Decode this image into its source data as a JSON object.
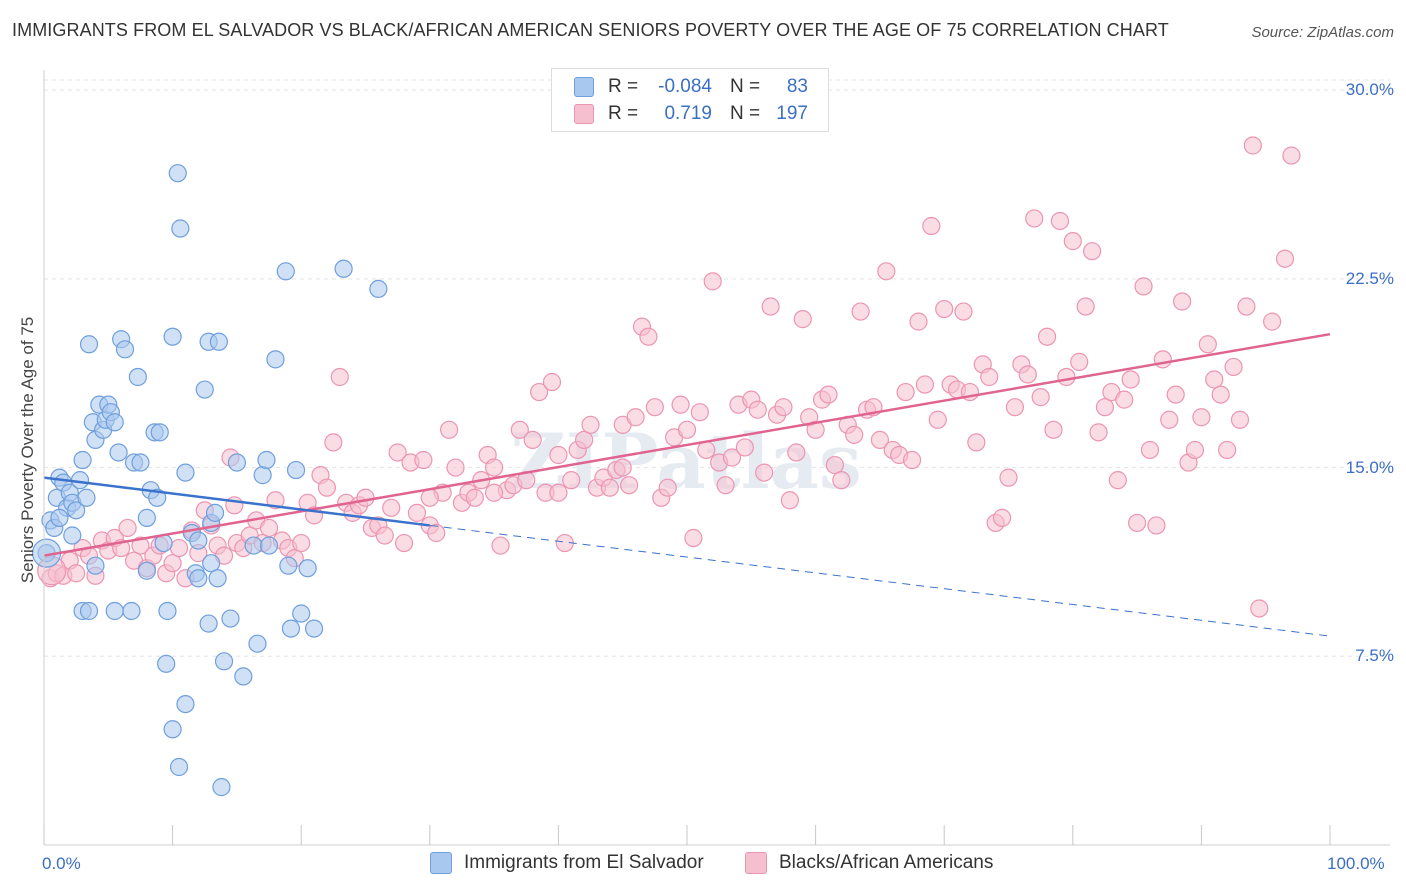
{
  "header": {
    "title": "IMMIGRANTS FROM EL SALVADOR VS BLACK/AFRICAN AMERICAN SENIORS POVERTY OVER THE AGE OF 75 CORRELATION CHART",
    "source": "Source: ZipAtlas.com"
  },
  "legend": {
    "blue": {
      "r_label": "R =",
      "r_value": "-0.084",
      "n_label": "N =",
      "n_value": "83"
    },
    "pink": {
      "r_label": "R =",
      "r_value": "0.719",
      "n_label": "N =",
      "n_value": "197"
    }
  },
  "bottom_legend": {
    "blue": "Immigrants from El Salvador",
    "pink": "Blacks/African Americans"
  },
  "colors": {
    "blue_fill": "#a9c8ef",
    "blue_stroke": "#6f9fdc",
    "blue_line": "#3a72cc",
    "pink_fill": "#f6bfd0",
    "pink_stroke": "#ec95b2",
    "pink_line": "#e0648f",
    "grid": "#e4e4e4",
    "axis_text": "#3b6fc4"
  },
  "watermark": "ZIPatlas",
  "chart_data": {
    "type": "scatter",
    "title": "IMMIGRANTS FROM EL SALVADOR VS BLACK/AFRICAN AMERICAN SENIORS POVERTY OVER THE AGE OF 75 CORRELATION CHART",
    "xlabel": "",
    "ylabel": "Seniors Poverty Over the Age of 75",
    "xlim": [
      0,
      100
    ],
    "ylim": [
      0,
      30.8
    ],
    "x_tick_labels": [
      "0.0%",
      "100.0%"
    ],
    "y_ticks": [
      7.5,
      15.0,
      22.5,
      30.0
    ],
    "y_tick_labels": [
      "7.5%",
      "15.0%",
      "22.5%",
      "30.0%"
    ],
    "grid": true,
    "legend_position": "top-center",
    "series": [
      {
        "name": "Immigrants from El Salvador",
        "color": "blue",
        "trend": {
          "x": [
            0,
            30,
            100
          ],
          "y": [
            14.6,
            12.7,
            8.3
          ],
          "solid_until": 30
        },
        "points": [
          [
            0.2,
            11.6
          ],
          [
            0.5,
            12.9
          ],
          [
            0.8,
            12.6
          ],
          [
            1.0,
            13.8
          ],
          [
            1.2,
            14.6
          ],
          [
            1.5,
            14.4
          ],
          [
            1.8,
            13.4
          ],
          [
            2.0,
            14.0
          ],
          [
            2.2,
            13.6
          ],
          [
            2.5,
            13.3
          ],
          [
            2.8,
            14.5
          ],
          [
            3.0,
            15.3
          ],
          [
            3.3,
            13.8
          ],
          [
            3.5,
            19.9
          ],
          [
            3.8,
            16.8
          ],
          [
            4.0,
            16.1
          ],
          [
            4.3,
            17.5
          ],
          [
            4.6,
            16.5
          ],
          [
            4.8,
            16.9
          ],
          [
            5.0,
            17.5
          ],
          [
            5.2,
            17.2
          ],
          [
            5.5,
            16.8
          ],
          [
            5.8,
            15.6
          ],
          [
            6.0,
            20.1
          ],
          [
            6.3,
            19.7
          ],
          [
            7.0,
            15.2
          ],
          [
            7.3,
            18.6
          ],
          [
            7.5,
            15.2
          ],
          [
            8.0,
            13.0
          ],
          [
            8.3,
            14.1
          ],
          [
            8.6,
            16.4
          ],
          [
            8.8,
            13.8
          ],
          [
            9.0,
            16.4
          ],
          [
            9.3,
            12.0
          ],
          [
            9.6,
            9.3
          ],
          [
            10.0,
            20.2
          ],
          [
            10.4,
            26.7
          ],
          [
            10.6,
            24.5
          ],
          [
            11.0,
            14.8
          ],
          [
            11.5,
            12.4
          ],
          [
            11.8,
            10.8
          ],
          [
            12.0,
            12.1
          ],
          [
            12.5,
            18.1
          ],
          [
            12.8,
            20.0
          ],
          [
            13.0,
            12.8
          ],
          [
            13.3,
            13.2
          ],
          [
            13.6,
            20.0
          ],
          [
            14.0,
            7.3
          ],
          [
            14.5,
            9.0
          ],
          [
            15.0,
            15.2
          ],
          [
            15.5,
            6.7
          ],
          [
            16.3,
            11.9
          ],
          [
            16.6,
            8.0
          ],
          [
            17.0,
            14.7
          ],
          [
            17.3,
            15.3
          ],
          [
            17.5,
            11.9
          ],
          [
            18.0,
            19.3
          ],
          [
            18.8,
            22.8
          ],
          [
            19.0,
            11.1
          ],
          [
            19.2,
            8.6
          ],
          [
            19.6,
            14.9
          ],
          [
            20.0,
            9.2
          ],
          [
            20.5,
            11.0
          ],
          [
            21.0,
            8.6
          ],
          [
            23.3,
            22.9
          ],
          [
            26.0,
            22.1
          ],
          [
            1.2,
            13.0
          ],
          [
            2.2,
            12.3
          ],
          [
            3.0,
            9.3
          ],
          [
            3.5,
            9.3
          ],
          [
            4.0,
            11.1
          ],
          [
            8.0,
            10.9
          ],
          [
            12.0,
            10.6
          ],
          [
            13.0,
            11.2
          ],
          [
            5.5,
            9.3
          ],
          [
            6.8,
            9.3
          ],
          [
            9.5,
            7.2
          ],
          [
            10.0,
            4.6
          ],
          [
            10.5,
            3.1
          ],
          [
            11.0,
            5.6
          ],
          [
            12.8,
            8.8
          ],
          [
            13.5,
            10.6
          ],
          [
            13.8,
            2.3
          ]
        ]
      },
      {
        "name": "Blacks/African Americans",
        "color": "pink",
        "trend": {
          "x": [
            0,
            100
          ],
          "y": [
            11.5,
            20.3
          ]
        },
        "points": [
          [
            0.5,
            10.6
          ],
          [
            1.0,
            10.8
          ],
          [
            1.5,
            10.7
          ],
          [
            2.0,
            11.3
          ],
          [
            2.5,
            10.8
          ],
          [
            3.0,
            11.8
          ],
          [
            3.5,
            11.5
          ],
          [
            4.0,
            10.7
          ],
          [
            4.5,
            12.1
          ],
          [
            5.0,
            11.7
          ],
          [
            5.5,
            12.2
          ],
          [
            6.0,
            11.8
          ],
          [
            6.5,
            12.6
          ],
          [
            7.0,
            11.3
          ],
          [
            7.5,
            11.9
          ],
          [
            8.0,
            11.0
          ],
          [
            8.5,
            11.5
          ],
          [
            9.0,
            11.9
          ],
          [
            9.5,
            10.8
          ],
          [
            10.0,
            11.2
          ],
          [
            10.5,
            11.8
          ],
          [
            11.0,
            10.6
          ],
          [
            11.5,
            12.5
          ],
          [
            12.0,
            11.6
          ],
          [
            12.5,
            13.3
          ],
          [
            13.0,
            12.7
          ],
          [
            13.5,
            11.9
          ],
          [
            14.0,
            11.5
          ],
          [
            14.5,
            15.4
          ],
          [
            15.0,
            12.0
          ],
          [
            15.5,
            11.8
          ],
          [
            16.0,
            12.3
          ],
          [
            16.5,
            12.9
          ],
          [
            17.0,
            12.0
          ],
          [
            17.5,
            12.6
          ],
          [
            18.0,
            13.7
          ],
          [
            18.5,
            12.1
          ],
          [
            19.0,
            11.8
          ],
          [
            19.5,
            11.4
          ],
          [
            20.0,
            12.0
          ],
          [
            20.5,
            13.6
          ],
          [
            21.0,
            13.1
          ],
          [
            21.5,
            14.7
          ],
          [
            22.0,
            14.2
          ],
          [
            22.5,
            16.0
          ],
          [
            23.0,
            18.6
          ],
          [
            23.5,
            13.6
          ],
          [
            24.0,
            13.2
          ],
          [
            24.5,
            13.5
          ],
          [
            25.0,
            13.8
          ],
          [
            25.5,
            12.6
          ],
          [
            26.0,
            12.7
          ],
          [
            26.5,
            12.3
          ],
          [
            27.0,
            13.4
          ],
          [
            27.5,
            15.6
          ],
          [
            28.0,
            12.0
          ],
          [
            28.5,
            15.2
          ],
          [
            29.0,
            13.2
          ],
          [
            29.5,
            15.3
          ],
          [
            30.0,
            12.7
          ],
          [
            30.5,
            12.4
          ],
          [
            31.0,
            14.0
          ],
          [
            31.5,
            16.5
          ],
          [
            32.0,
            15.0
          ],
          [
            32.5,
            13.6
          ],
          [
            33.0,
            14.0
          ],
          [
            33.5,
            13.8
          ],
          [
            34.0,
            14.5
          ],
          [
            34.5,
            15.5
          ],
          [
            35.0,
            15.0
          ],
          [
            35.5,
            11.9
          ],
          [
            36.0,
            14.1
          ],
          [
            36.5,
            14.3
          ],
          [
            37.0,
            16.5
          ],
          [
            37.5,
            14.5
          ],
          [
            38.0,
            16.1
          ],
          [
            38.5,
            18.0
          ],
          [
            39.0,
            14.0
          ],
          [
            39.5,
            18.4
          ],
          [
            40.0,
            14.0
          ],
          [
            40.5,
            12.0
          ],
          [
            41.0,
            14.5
          ],
          [
            41.5,
            15.7
          ],
          [
            42.0,
            16.1
          ],
          [
            42.5,
            16.7
          ],
          [
            43.0,
            14.2
          ],
          [
            43.5,
            14.6
          ],
          [
            44.0,
            14.2
          ],
          [
            44.5,
            14.9
          ],
          [
            45.0,
            16.7
          ],
          [
            45.5,
            14.3
          ],
          [
            46.0,
            17.0
          ],
          [
            46.5,
            20.6
          ],
          [
            47.0,
            20.2
          ],
          [
            47.5,
            17.4
          ],
          [
            48.0,
            13.8
          ],
          [
            48.5,
            14.2
          ],
          [
            49.0,
            16.2
          ],
          [
            49.5,
            17.5
          ],
          [
            50.0,
            16.5
          ],
          [
            50.5,
            12.2
          ],
          [
            51.0,
            17.2
          ],
          [
            51.5,
            15.7
          ],
          [
            52.0,
            22.4
          ],
          [
            52.5,
            15.2
          ],
          [
            53.0,
            14.3
          ],
          [
            53.5,
            15.4
          ],
          [
            54.0,
            17.5
          ],
          [
            54.5,
            15.8
          ],
          [
            55.0,
            17.7
          ],
          [
            55.5,
            17.3
          ],
          [
            56.0,
            14.8
          ],
          [
            56.5,
            21.4
          ],
          [
            57.0,
            17.1
          ],
          [
            57.5,
            17.4
          ],
          [
            58.0,
            13.7
          ],
          [
            58.5,
            15.6
          ],
          [
            59.0,
            20.9
          ],
          [
            59.5,
            17.0
          ],
          [
            60.0,
            16.5
          ],
          [
            60.5,
            17.7
          ],
          [
            61.0,
            17.9
          ],
          [
            61.5,
            15.1
          ],
          [
            62.0,
            14.5
          ],
          [
            62.5,
            16.7
          ],
          [
            63.0,
            16.3
          ],
          [
            63.5,
            21.2
          ],
          [
            64.0,
            17.3
          ],
          [
            64.5,
            17.4
          ],
          [
            65.0,
            16.1
          ],
          [
            65.5,
            22.8
          ],
          [
            66.0,
            15.7
          ],
          [
            66.5,
            15.5
          ],
          [
            67.0,
            18.0
          ],
          [
            67.5,
            15.3
          ],
          [
            68.0,
            20.8
          ],
          [
            68.5,
            18.3
          ],
          [
            69.0,
            24.6
          ],
          [
            69.5,
            16.9
          ],
          [
            70.0,
            21.3
          ],
          [
            70.5,
            18.3
          ],
          [
            71.0,
            18.1
          ],
          [
            71.5,
            21.2
          ],
          [
            72.0,
            18.0
          ],
          [
            72.5,
            16.0
          ],
          [
            73.0,
            19.1
          ],
          [
            73.5,
            18.6
          ],
          [
            74.0,
            12.8
          ],
          [
            74.5,
            13.0
          ],
          [
            75.0,
            14.6
          ],
          [
            75.5,
            17.4
          ],
          [
            76.0,
            19.1
          ],
          [
            76.5,
            18.7
          ],
          [
            77.0,
            24.9
          ],
          [
            77.5,
            17.8
          ],
          [
            78.0,
            20.2
          ],
          [
            78.5,
            16.5
          ],
          [
            79.0,
            24.8
          ],
          [
            79.5,
            18.6
          ],
          [
            80.0,
            24.0
          ],
          [
            80.5,
            19.2
          ],
          [
            81.0,
            21.4
          ],
          [
            81.5,
            23.6
          ],
          [
            82.0,
            16.4
          ],
          [
            82.5,
            17.4
          ],
          [
            83.0,
            18.0
          ],
          [
            83.5,
            14.5
          ],
          [
            84.0,
            17.7
          ],
          [
            84.5,
            18.5
          ],
          [
            85.0,
            12.8
          ],
          [
            85.5,
            22.2
          ],
          [
            86.0,
            15.7
          ],
          [
            86.5,
            12.7
          ],
          [
            87.0,
            19.3
          ],
          [
            87.5,
            16.9
          ],
          [
            88.0,
            17.9
          ],
          [
            88.5,
            21.6
          ],
          [
            89.0,
            15.2
          ],
          [
            89.5,
            15.7
          ],
          [
            90.0,
            17.0
          ],
          [
            90.5,
            19.9
          ],
          [
            91.0,
            18.5
          ],
          [
            91.5,
            17.9
          ],
          [
            92.0,
            15.7
          ],
          [
            92.5,
            19.0
          ],
          [
            93.0,
            16.9
          ],
          [
            93.5,
            21.4
          ],
          [
            94.0,
            27.8
          ],
          [
            94.5,
            9.4
          ],
          [
            95.5,
            20.8
          ],
          [
            96.5,
            23.3
          ],
          [
            97.0,
            27.4
          ],
          [
            14.8,
            13.5
          ],
          [
            30.0,
            13.8
          ],
          [
            35.0,
            14.0
          ],
          [
            40.0,
            15.5
          ],
          [
            45.0,
            15.0
          ]
        ]
      }
    ]
  }
}
